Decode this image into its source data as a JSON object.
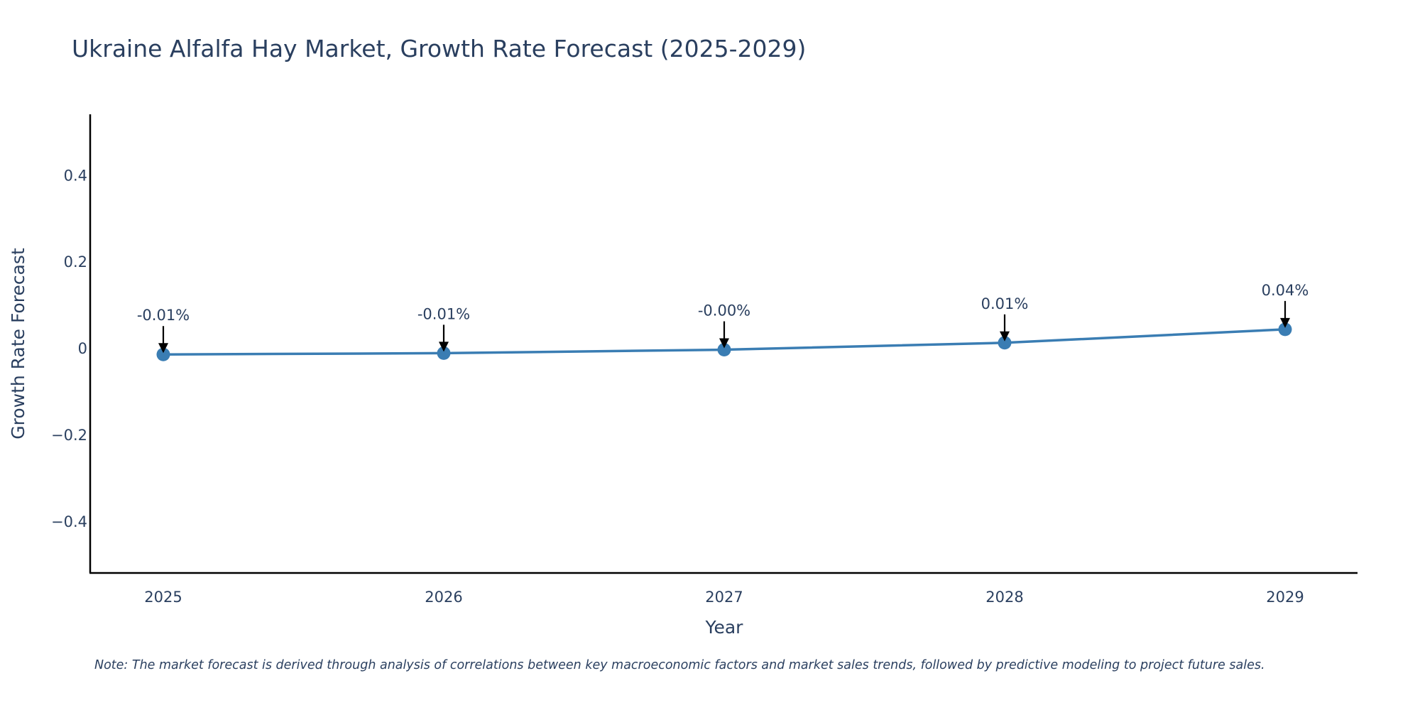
{
  "chart_data": {
    "type": "line",
    "title": "Ukraine Alfalfa Hay Market, Growth Rate Forecast (2025-2029)",
    "xlabel": "Year",
    "ylabel": "Growth Rate Forecast",
    "categories": [
      "2025",
      "2026",
      "2027",
      "2028",
      "2029"
    ],
    "series": [
      {
        "name": "Growth Rate Forecast",
        "values": [
          -0.015,
          -0.012,
          -0.004,
          0.012,
          0.043
        ],
        "labels": [
          "-0.01%",
          "-0.01%",
          "-0.00%",
          "0.01%",
          "0.04%"
        ]
      }
    ],
    "ylim": [
      -0.52,
      0.54
    ],
    "yticks": [
      0.4,
      0.2,
      0,
      -0.2,
      -0.4
    ],
    "ytick_labels": [
      "0.4",
      "0.2",
      "0",
      "−0.2",
      "−0.4"
    ],
    "grid": false,
    "note": "Note: The market forecast is derived through analysis of correlations between key macroeconomic factors and market sales trends, followed by predictive modeling to project future sales.",
    "colors": {
      "line": "#3a7db3",
      "marker": "#3a7db3",
      "arrow": "#000000",
      "text": "#2a3f5f",
      "axis": "#000000"
    }
  }
}
